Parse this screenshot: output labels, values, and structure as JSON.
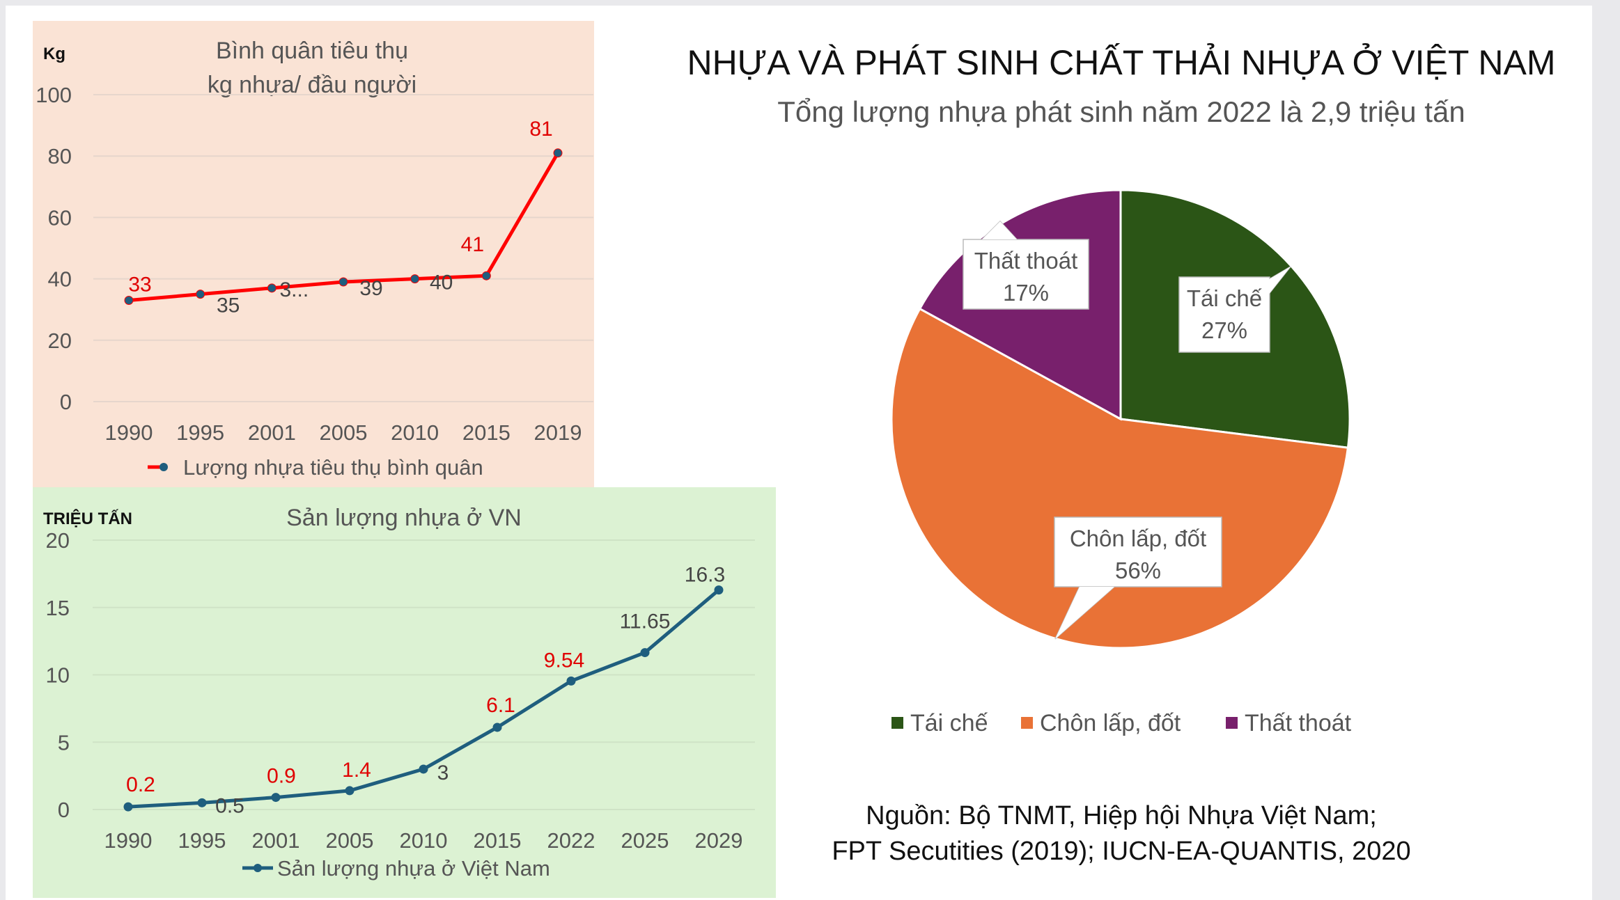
{
  "main_title": "NHỰA VÀ PHÁT SINH CHẤT THẢI NHỰA Ở VIỆT NAM",
  "source_lines": [
    "Nguồn: Bộ TNMT, Hiệp hội Nhựa Việt Nam;",
    "FPT Secutities (2019); IUCN-EA-QUANTIS, 2020"
  ],
  "chart_data": [
    {
      "type": "line",
      "title_lines": [
        "Bình quân tiêu thụ",
        "kg nhựa/ đầu người"
      ],
      "ylabel": "Kg",
      "categories": [
        "1990",
        "1995",
        "2001",
        "2005",
        "2010",
        "2015",
        "2019"
      ],
      "ylim": [
        0,
        100
      ],
      "yticks": [
        "0",
        "20",
        "40",
        "60",
        "80",
        "100"
      ],
      "grid": true,
      "legend": "bottom",
      "background": "#fae3d5",
      "series": [
        {
          "name": "Lượng nhựa tiêu thụ bình quân",
          "values": [
            33,
            35,
            37,
            39,
            40,
            41,
            81
          ],
          "color": "#ff0000",
          "marker": "#1f5e7e"
        }
      ],
      "data_labels": [
        "33",
        "35",
        "3...",
        "39",
        "40",
        "41",
        "81"
      ],
      "label_colors": [
        "#e00000",
        "#444444",
        "#444444",
        "#444444",
        "#444444",
        "#e00000",
        "#e00000"
      ]
    },
    {
      "type": "line",
      "title": "Sản lượng nhựa ở VN",
      "ylabel": "TRIỆU TẤN",
      "categories": [
        "1990",
        "1995",
        "2001",
        "2005",
        "2010",
        "2015",
        "2022",
        "2025",
        "2029"
      ],
      "ylim": [
        0,
        20
      ],
      "yticks": [
        "0",
        "5",
        "10",
        "15",
        "20"
      ],
      "grid": true,
      "legend": "bottom",
      "background": "#dcf2d3",
      "series": [
        {
          "name": "Sản lượng nhựa ở Việt Nam",
          "values": [
            0.2,
            0.5,
            0.9,
            1.4,
            3,
            6.1,
            9.54,
            11.65,
            16.3
          ],
          "color": "#1f5e7e"
        }
      ],
      "data_labels": [
        "0.2",
        "0.5",
        "0.9",
        "1.4",
        "3",
        "6.1",
        "9.54",
        "11.65",
        "16.3"
      ],
      "label_colors": [
        "#e00000",
        "#444444",
        "#e00000",
        "#e00000",
        "#444444",
        "#e00000",
        "#e00000",
        "#444444",
        "#444444"
      ]
    },
    {
      "type": "pie",
      "title": "Tổng lượng nhựa phát sinh năm 2022 là 2,9 triệu tấn",
      "legend": "bottom",
      "slices": [
        {
          "name": "Tái chế",
          "value": 27,
          "label": "27%",
          "color": "#2b5516"
        },
        {
          "name": "Chôn lấp, đốt",
          "value": 56,
          "label": "56%",
          "color": "#e97236"
        },
        {
          "name": "Thất thoát",
          "value": 17,
          "label": "17%",
          "color": "#78206c"
        }
      ]
    }
  ]
}
